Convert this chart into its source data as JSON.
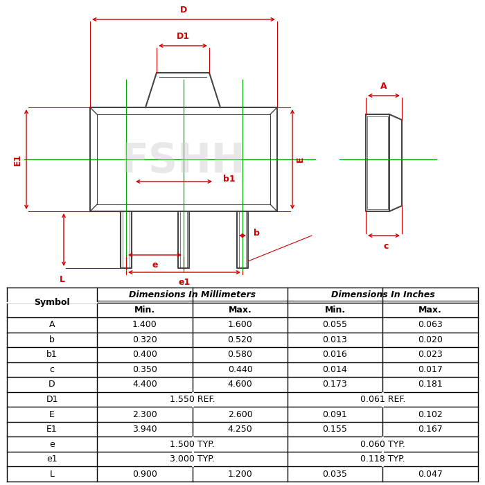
{
  "bg_color": "#ffffff",
  "watermark_text": "FSHH",
  "watermark_color": "#cccccc",
  "dim_color": "#cc0000",
  "green_line_color": "#00aa00",
  "body_color": "#444444",
  "table_header1": "Dimensions In Millimeters",
  "table_header2": "Dimensions In Inches",
  "rows": [
    [
      "A",
      "1.400",
      "1.600",
      "0.055",
      "0.063"
    ],
    [
      "b",
      "0.320",
      "0.520",
      "0.013",
      "0.020"
    ],
    [
      "b1",
      "0.400",
      "0.580",
      "0.016",
      "0.023"
    ],
    [
      "c",
      "0.350",
      "0.440",
      "0.014",
      "0.017"
    ],
    [
      "D",
      "4.400",
      "4.600",
      "0.173",
      "0.181"
    ],
    [
      "D1",
      "1.550 REF.",
      "",
      "0.061 REF.",
      ""
    ],
    [
      "E",
      "2.300",
      "2.600",
      "0.091",
      "0.102"
    ],
    [
      "E1",
      "3.940",
      "4.250",
      "0.155",
      "0.167"
    ],
    [
      "e",
      "1.500 TYP.",
      "",
      "0.060 TYP.",
      ""
    ],
    [
      "e1",
      "3.000 TYP.",
      "",
      "0.118 TYP.",
      ""
    ],
    [
      "L",
      "0.900",
      "1.200",
      "0.035",
      "0.047"
    ]
  ]
}
